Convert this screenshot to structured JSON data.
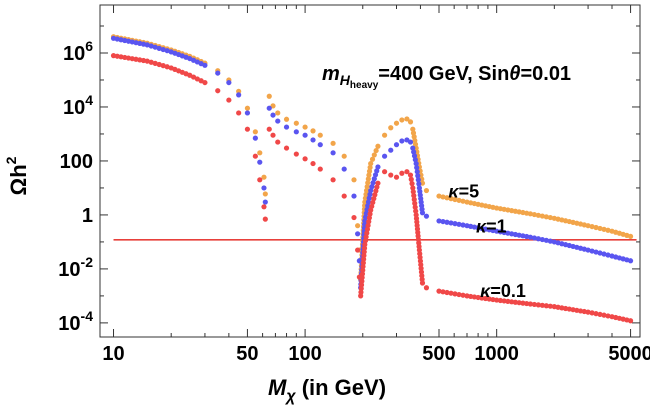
{
  "chart_data": {
    "type": "scatter",
    "title": "",
    "xscale": "log",
    "yscale": "log",
    "xlim": [
      8.5,
      5600
    ],
    "ylim": [
      3e-05,
      60000000
    ],
    "xlabel": {
      "main": "M",
      "sub": "χ",
      "rest": " (in GeV)"
    },
    "ylabel": {
      "main": "Ωh",
      "sup": "2"
    },
    "xticks": [
      {
        "value": 10,
        "label": "10"
      },
      {
        "value": 50,
        "label": "50"
      },
      {
        "value": 100,
        "label": "100"
      },
      {
        "value": 500,
        "label": "500"
      },
      {
        "value": 1000,
        "label": "1000"
      },
      {
        "value": 5000,
        "label": "5000"
      }
    ],
    "yticks": [
      {
        "value": 1000000,
        "base": "10",
        "exp": "6"
      },
      {
        "value": 10000,
        "base": "10",
        "exp": "4"
      },
      {
        "value": 100,
        "base": "100",
        "exp": ""
      },
      {
        "value": 1,
        "base": "1",
        "exp": ""
      },
      {
        "value": 0.01,
        "base": "10",
        "exp": "-2"
      },
      {
        "value": 0.0001,
        "base": "10",
        "exp": "-4"
      }
    ],
    "annotation": {
      "m": "m",
      "sub": "H",
      "subsub": "heavy",
      "rest": "=400 GeV, Sin",
      "theta": "θ",
      "tail": "=0.01"
    },
    "reference_line": {
      "y": 0.12,
      "color": "#e8403b"
    },
    "series": [
      {
        "name": "κ=5",
        "label_kappa": "κ",
        "label_value": "=5",
        "label_at": {
          "x": 560,
          "y": 4.5
        },
        "color": "#f2a54a",
        "points": [
          [
            10,
            4000000
          ],
          [
            15,
            2300000
          ],
          [
            20,
            1300000
          ],
          [
            25,
            750000
          ],
          [
            30,
            420000
          ],
          [
            35,
            220000
          ],
          [
            40,
            100000
          ],
          [
            45,
            38000
          ],
          [
            50,
            9000
          ],
          [
            55,
            1200
          ],
          [
            58,
            200
          ],
          [
            61,
            25
          ],
          [
            62,
            6
          ],
          [
            65,
            25000
          ],
          [
            68,
            11000
          ],
          [
            72,
            6000
          ],
          [
            80,
            3500
          ],
          [
            90,
            2500
          ],
          [
            100,
            1800
          ],
          [
            110,
            1300
          ],
          [
            120,
            900
          ],
          [
            140,
            450
          ],
          [
            160,
            150
          ],
          [
            180,
            20
          ],
          [
            188,
            0.4
          ],
          [
            192,
            0.05
          ],
          [
            195,
            0.004
          ],
          [
            205,
            3
          ],
          [
            220,
            80
          ],
          [
            240,
            350
          ],
          [
            260,
            900
          ],
          [
            280,
            1700
          ],
          [
            300,
            2500
          ],
          [
            320,
            3300
          ],
          [
            340,
            3600
          ],
          [
            355,
            2800
          ],
          [
            365,
            1500
          ],
          [
            380,
            300
          ],
          [
            395,
            60
          ],
          [
            410,
            15
          ],
          [
            430,
            8
          ],
          [
            500,
            5
          ],
          [
            700,
            3
          ],
          [
            1000,
            1.8
          ],
          [
            1500,
            1.1
          ],
          [
            2000,
            0.75
          ],
          [
            3000,
            0.4
          ],
          [
            4000,
            0.25
          ],
          [
            5000,
            0.16
          ]
        ]
      },
      {
        "name": "κ=1",
        "label_kappa": "κ",
        "label_value": "=1",
        "label_at": {
          "x": 780,
          "y": 0.22
        },
        "color": "#5a55f0",
        "points": [
          [
            10,
            3500000
          ],
          [
            15,
            2000000
          ],
          [
            20,
            1100000
          ],
          [
            25,
            620000
          ],
          [
            30,
            350000
          ],
          [
            35,
            180000
          ],
          [
            40,
            80000
          ],
          [
            45,
            28000
          ],
          [
            50,
            6000
          ],
          [
            55,
            700
          ],
          [
            58,
            90
          ],
          [
            61,
            10
          ],
          [
            62,
            3
          ],
          [
            65,
            9000
          ],
          [
            68,
            5000
          ],
          [
            72,
            3000
          ],
          [
            80,
            1800
          ],
          [
            90,
            1200
          ],
          [
            100,
            900
          ],
          [
            110,
            600
          ],
          [
            120,
            400
          ],
          [
            140,
            200
          ],
          [
            160,
            50
          ],
          [
            180,
            5
          ],
          [
            188,
            0.2
          ],
          [
            192,
            0.02
          ],
          [
            195,
            0.002
          ],
          [
            205,
            0.6
          ],
          [
            220,
            8
          ],
          [
            240,
            60
          ],
          [
            260,
            150
          ],
          [
            280,
            250
          ],
          [
            300,
            400
          ],
          [
            320,
            550
          ],
          [
            340,
            600
          ],
          [
            355,
            500
          ],
          [
            365,
            300
          ],
          [
            380,
            80
          ],
          [
            395,
            10
          ],
          [
            410,
            1.2
          ],
          [
            430,
            0.9
          ],
          [
            500,
            0.6
          ],
          [
            700,
            0.4
          ],
          [
            1000,
            0.25
          ],
          [
            1500,
            0.15
          ],
          [
            2000,
            0.1
          ],
          [
            3000,
            0.05
          ],
          [
            4000,
            0.03
          ],
          [
            5000,
            0.02
          ]
        ]
      },
      {
        "name": "κ=0.1",
        "label_kappa": "κ",
        "label_value": "=0.1",
        "label_at": {
          "x": 820,
          "y": 0.0009
        },
        "color": "#f04848",
        "points": [
          [
            10,
            800000
          ],
          [
            15,
            500000
          ],
          [
            20,
            280000
          ],
          [
            25,
            150000
          ],
          [
            30,
            80000
          ],
          [
            35,
            40000
          ],
          [
            40,
            18000
          ],
          [
            45,
            6000
          ],
          [
            50,
            1500
          ],
          [
            55,
            150
          ],
          [
            58,
            20
          ],
          [
            61,
            2
          ],
          [
            62,
            0.7
          ],
          [
            65,
            1500
          ],
          [
            68,
            900
          ],
          [
            72,
            500
          ],
          [
            80,
            300
          ],
          [
            90,
            180
          ],
          [
            100,
            120
          ],
          [
            110,
            80
          ],
          [
            120,
            50
          ],
          [
            140,
            20
          ],
          [
            160,
            5
          ],
          [
            180,
            0.8
          ],
          [
            188,
            0.05
          ],
          [
            192,
            0.005
          ],
          [
            195,
            0.001
          ],
          [
            205,
            0.08
          ],
          [
            220,
            1.5
          ],
          [
            240,
            15
          ],
          [
            260,
            40
          ],
          [
            280,
            30
          ],
          [
            300,
            25
          ],
          [
            320,
            35
          ],
          [
            340,
            40
          ],
          [
            355,
            30
          ],
          [
            365,
            10
          ],
          [
            380,
            1
          ],
          [
            395,
            0.05
          ],
          [
            410,
            0.003
          ],
          [
            430,
            0.002
          ],
          [
            500,
            0.0015
          ],
          [
            700,
            0.001
          ],
          [
            1000,
            0.0007
          ],
          [
            1500,
            0.0005
          ],
          [
            2000,
            0.0004
          ],
          [
            3000,
            0.00025
          ],
          [
            4000,
            0.00017
          ],
          [
            5000,
            0.00012
          ]
        ]
      }
    ]
  }
}
